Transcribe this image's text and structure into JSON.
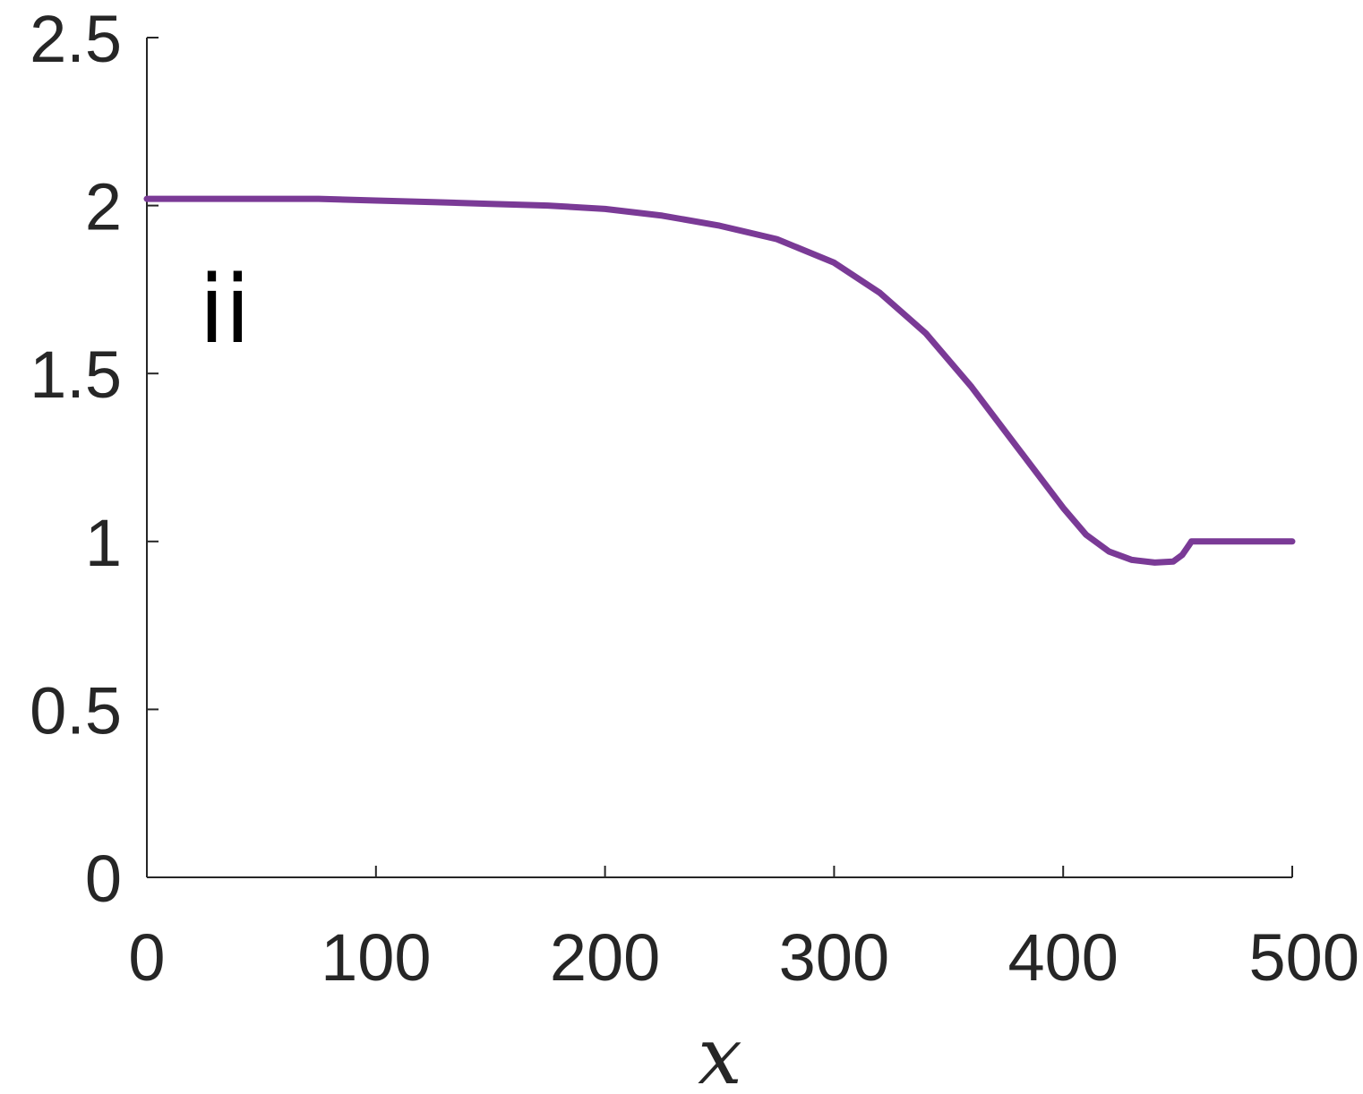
{
  "chart_data": {
    "type": "line",
    "xlabel": "x",
    "ylabel": "",
    "annotation": "ii",
    "xlim": [
      0,
      500
    ],
    "ylim": [
      0,
      2.5
    ],
    "xticks": [
      0,
      100,
      200,
      300,
      400,
      500
    ],
    "yticks": [
      0,
      0.5,
      1,
      1.5,
      2,
      2.5
    ],
    "xtick_labels": [
      "0",
      "100",
      "200",
      "300",
      "400",
      "500"
    ],
    "ytick_labels": [
      "0",
      "0.5",
      "1",
      "1.5",
      "2",
      "2.5"
    ],
    "grid": false,
    "series": [
      {
        "color": "#7a3a96",
        "x": [
          0,
          25,
          50,
          75,
          100,
          125,
          150,
          175,
          200,
          225,
          250,
          275,
          300,
          320,
          340,
          360,
          380,
          400,
          410,
          420,
          430,
          440,
          448,
          452,
          455,
          456,
          470,
          485,
          500
        ],
        "y": [
          2.02,
          2.02,
          2.02,
          2.02,
          2.015,
          2.01,
          2.005,
          2.0,
          1.99,
          1.97,
          1.94,
          1.9,
          1.83,
          1.74,
          1.62,
          1.46,
          1.28,
          1.1,
          1.02,
          0.97,
          0.945,
          0.937,
          0.94,
          0.96,
          0.99,
          1.0,
          1.0,
          1.0,
          1.0
        ]
      }
    ]
  }
}
